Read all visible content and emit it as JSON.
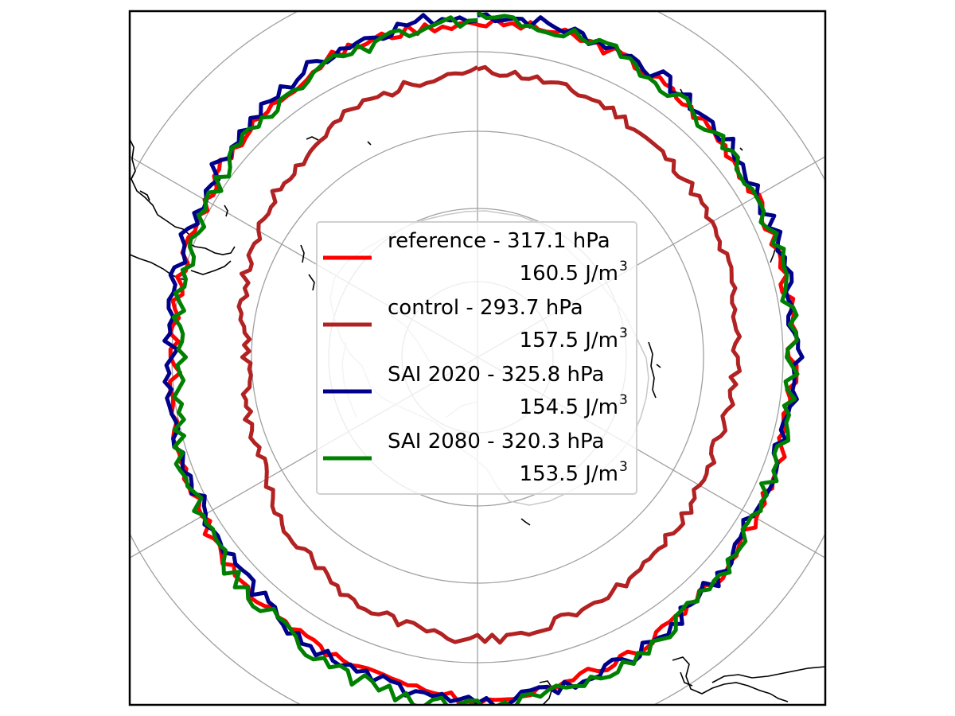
{
  "map": {
    "projection": "south-polar-stereographic",
    "gridline_color": "#a0a0a0",
    "coastline_color": "#000000",
    "antarctica_coastline_color": "#c8c8c8"
  },
  "series": [
    {
      "color": "#ff0000",
      "legend_line1": "reference - 317.1 hPa",
      "legend_line2": "160.5 J/m",
      "legend_sup": "3",
      "pressure_hPa": 317.1,
      "energy_J_per_m3": 160.5
    },
    {
      "color": "#b22222",
      "legend_line1": "control - 293.7 hPa",
      "legend_line2": "157.5 J/m",
      "legend_sup": "3",
      "pressure_hPa": 293.7,
      "energy_J_per_m3": 157.5
    },
    {
      "color": "#00008b",
      "legend_line1": "SAI 2020 - 325.8 hPa",
      "legend_line2": "154.5 J/m",
      "legend_sup": "3",
      "pressure_hPa": 325.8,
      "energy_J_per_m3": 154.5
    },
    {
      "color": "#008000",
      "legend_line1": "SAI 2080 - 320.3 hPa",
      "legend_line2": "153.5 J/m",
      "legend_sup": "3",
      "pressure_hPa": 320.3,
      "energy_J_per_m3": 153.5
    }
  ]
}
